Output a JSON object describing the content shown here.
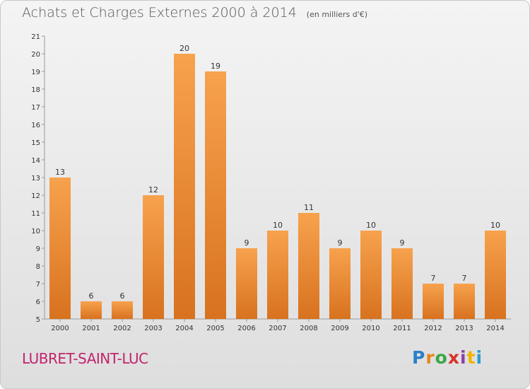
{
  "header": {
    "title": "Achats et Charges Externes 2000 à 2014",
    "subtitle": "(en milliers d'€)"
  },
  "footer": {
    "town": "LUBRET-SAINT-LUC",
    "logo": "Proxiti"
  },
  "colors": {
    "bar_light": "#f7a24d",
    "bar_dark": "#d8721f",
    "town_text": "#c0246e"
  },
  "chart_data": {
    "type": "bar",
    "categories": [
      "2000",
      "2001",
      "2002",
      "2003",
      "2004",
      "2005",
      "2006",
      "2007",
      "2008",
      "2009",
      "2010",
      "2011",
      "2012",
      "2013",
      "2014"
    ],
    "values": [
      13,
      6,
      6,
      12,
      20,
      19,
      9,
      10,
      11,
      9,
      10,
      9,
      7,
      7,
      10
    ],
    "ylim": [
      5,
      21
    ],
    "yticks": [
      5,
      6,
      7,
      8,
      9,
      10,
      11,
      12,
      13,
      14,
      15,
      16,
      17,
      18,
      19,
      20,
      21
    ],
    "grid": false,
    "legend": "none"
  }
}
